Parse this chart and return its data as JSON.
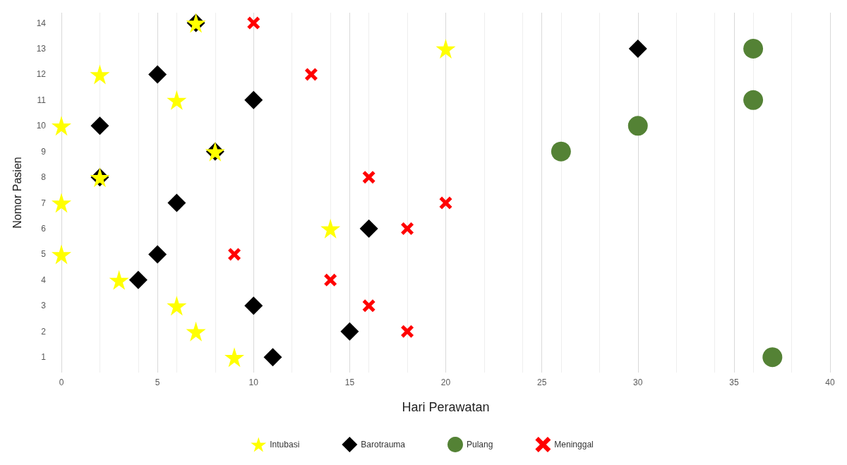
{
  "chart_data": {
    "type": "scatter",
    "xlabel": "Hari Perawatan",
    "ylabel": "Nomor Pasien",
    "xlim": [
      0,
      40
    ],
    "xticks": [
      0,
      5,
      10,
      15,
      20,
      25,
      30,
      35,
      40
    ],
    "ylim": [
      0.4,
      14.4
    ],
    "yticks": [
      1,
      2,
      3,
      4,
      5,
      6,
      7,
      8,
      9,
      10,
      11,
      12,
      13,
      14
    ],
    "grid": "x",
    "legend": "bottom",
    "series": [
      {
        "name": "Intubasi",
        "color": "#ffff00",
        "marker": "star",
        "x": [
          7,
          20,
          2,
          6,
          0,
          8,
          2,
          0,
          14,
          0,
          3,
          6,
          7,
          9
        ],
        "values": [
          14,
          13,
          12,
          11,
          10,
          9,
          8,
          7,
          6,
          5,
          4,
          3,
          2,
          1
        ]
      },
      {
        "name": "Barotrauma",
        "color": "#000000",
        "marker": "diamond",
        "x": [
          7,
          30,
          5,
          10,
          2,
          8,
          2,
          6,
          16,
          5,
          4,
          10,
          15,
          11
        ],
        "values": [
          14,
          13,
          12,
          11,
          10,
          9,
          8,
          7,
          6,
          5,
          4,
          3,
          2,
          1
        ]
      },
      {
        "name": "Pulang",
        "color": "#548235",
        "marker": "circle",
        "x": [
          36,
          36,
          30,
          26,
          37
        ],
        "values": [
          13,
          11,
          10,
          9,
          1
        ]
      },
      {
        "name": "Meninggal",
        "color": "#ff0000",
        "marker": "cross",
        "x": [
          10,
          13,
          16,
          20,
          18,
          9,
          14,
          16,
          18
        ],
        "values": [
          14,
          12,
          8,
          7,
          6,
          5,
          4,
          3,
          2
        ]
      }
    ]
  }
}
